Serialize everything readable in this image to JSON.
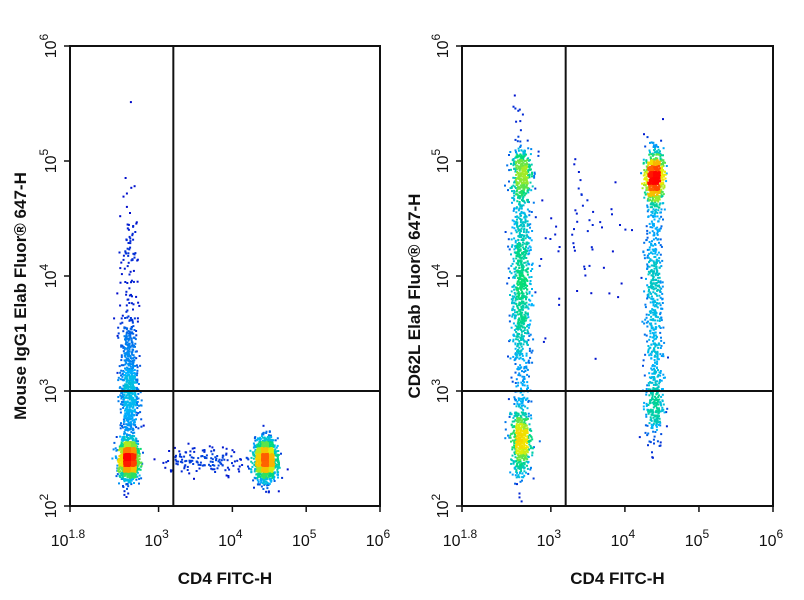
{
  "chart_data": [
    {
      "type": "scatter",
      "subtype": "flow-cytometry-density-dot-plot",
      "xlabel": "CD4 FITC-H",
      "ylabel": "Mouse IgG1 Elab Fluor® 647-H",
      "x_scale": "log",
      "y_scale": "log",
      "xlim_log10": [
        1.8,
        6
      ],
      "ylim_log10": [
        2,
        6
      ],
      "x_ticks": [
        {
          "log10": 1.8,
          "base": "10",
          "exp": "1.8"
        },
        {
          "log10": 3,
          "base": "10",
          "exp": "3"
        },
        {
          "log10": 4,
          "base": "10",
          "exp": "4"
        },
        {
          "log10": 5,
          "base": "10",
          "exp": "5"
        },
        {
          "log10": 6,
          "base": "10",
          "exp": "6"
        }
      ],
      "y_ticks": [
        {
          "log10": 2,
          "base": "10",
          "exp": "2"
        },
        {
          "log10": 3,
          "base": "10",
          "exp": "3"
        },
        {
          "log10": 4,
          "base": "10",
          "exp": "4"
        },
        {
          "log10": 5,
          "base": "10",
          "exp": "5"
        },
        {
          "log10": 6,
          "base": "10",
          "exp": "6"
        }
      ],
      "quadrant_gate_log10": {
        "x": 3.2,
        "y": 3.0
      },
      "density_colormap": [
        "#0000c8",
        "#00b4ff",
        "#00dc78",
        "#f0f000",
        "#ff8c00",
        "#ff0000"
      ],
      "populations": [
        {
          "x_log10": 2.6,
          "y_log10": 2.4,
          "sx": 0.06,
          "sy": 0.08,
          "n": 1500
        },
        {
          "x_log10": 2.6,
          "y_log10": 3.0,
          "sx": 0.06,
          "sy": 0.3,
          "n": 700
        },
        {
          "x_log10": 2.6,
          "y_log10": 3.9,
          "sx": 0.07,
          "sy": 0.45,
          "n": 120
        },
        {
          "x_log10": 4.45,
          "y_log10": 2.4,
          "sx": 0.07,
          "sy": 0.09,
          "n": 1400
        },
        {
          "x_log10": 3.7,
          "y_log10": 2.4,
          "sx": 0.35,
          "sy": 0.06,
          "n": 150
        }
      ]
    },
    {
      "type": "scatter",
      "subtype": "flow-cytometry-density-dot-plot",
      "xlabel": "CD4 FITC-H",
      "ylabel": "CD62L Elab Fluor® 647-H",
      "x_scale": "log",
      "y_scale": "log",
      "xlim_log10": [
        1.8,
        6
      ],
      "ylim_log10": [
        2,
        6
      ],
      "x_ticks": [
        {
          "log10": 1.8,
          "base": "10",
          "exp": "1.8"
        },
        {
          "log10": 3,
          "base": "10",
          "exp": "3"
        },
        {
          "log10": 4,
          "base": "10",
          "exp": "4"
        },
        {
          "log10": 5,
          "base": "10",
          "exp": "5"
        },
        {
          "log10": 6,
          "base": "10",
          "exp": "6"
        }
      ],
      "y_ticks": [
        {
          "log10": 2,
          "base": "10",
          "exp": "2"
        },
        {
          "log10": 3,
          "base": "10",
          "exp": "3"
        },
        {
          "log10": 4,
          "base": "10",
          "exp": "4"
        },
        {
          "log10": 5,
          "base": "10",
          "exp": "5"
        },
        {
          "log10": 6,
          "base": "10",
          "exp": "6"
        }
      ],
      "quadrant_gate_log10": {
        "x": 3.2,
        "y": 3.0
      },
      "density_colormap": [
        "#0000c8",
        "#00b4ff",
        "#00dc78",
        "#f0f000",
        "#ff8c00",
        "#ff0000"
      ],
      "populations": [
        {
          "x_log10": 2.6,
          "y_log10": 3.9,
          "sx": 0.07,
          "sy": 0.55,
          "n": 900
        },
        {
          "x_log10": 2.6,
          "y_log10": 2.55,
          "sx": 0.07,
          "sy": 0.15,
          "n": 500
        },
        {
          "x_log10": 2.6,
          "y_log10": 4.9,
          "sx": 0.07,
          "sy": 0.12,
          "n": 300
        },
        {
          "x_log10": 4.4,
          "y_log10": 4.85,
          "sx": 0.06,
          "sy": 0.12,
          "n": 700
        },
        {
          "x_log10": 4.4,
          "y_log10": 3.9,
          "sx": 0.06,
          "sy": 0.45,
          "n": 450
        },
        {
          "x_log10": 4.4,
          "y_log10": 2.9,
          "sx": 0.06,
          "sy": 0.2,
          "n": 250
        },
        {
          "x_log10": 3.5,
          "y_log10": 4.3,
          "sx": 0.35,
          "sy": 0.4,
          "n": 60
        }
      ]
    }
  ]
}
